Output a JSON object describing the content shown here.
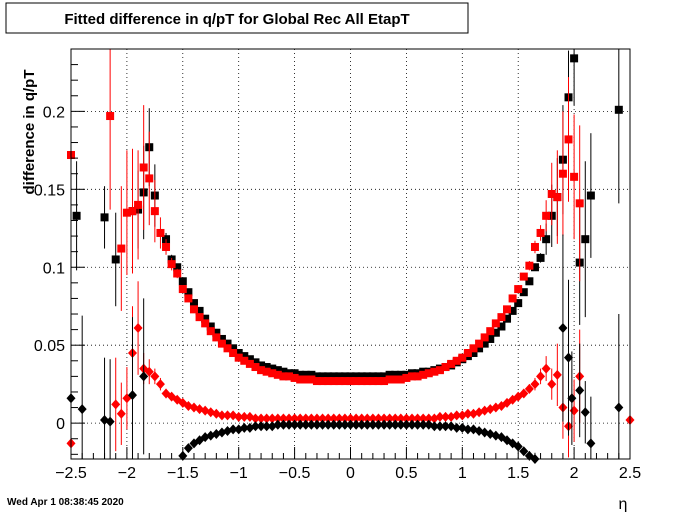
{
  "chart_data": {
    "type": "scatter",
    "title": "Fitted difference in q/pT for Global Rec All EtapT",
    "xlabel": "η",
    "ylabel": "difference in q/pT",
    "xlim": [
      -2.5,
      2.5
    ],
    "ylim": [
      -0.023,
      0.24
    ],
    "x_ticks": [
      -2.5,
      -2,
      -1.5,
      -1,
      -0.5,
      0,
      0.5,
      1,
      1.5,
      2,
      2.5
    ],
    "x_tick_labels": [
      "−2.5",
      "−2",
      "−1.5",
      "−1",
      "−0.5",
      "0",
      "0.5",
      "1",
      "1.5",
      "2",
      "2.5"
    ],
    "y_ticks": [
      0,
      0.05,
      0.1,
      0.15,
      0.2
    ],
    "y_tick_labels": [
      "0",
      "0.05",
      "0.1",
      "0.15",
      "0.2"
    ],
    "grid": true,
    "colors": {
      "black": "#000000",
      "red": "#ff0000"
    },
    "series": [
      {
        "marker": "square",
        "color": "#000000",
        "x": [
          -2.45,
          -2.2,
          -2.1,
          -1.95,
          -1.9,
          -1.85,
          -1.8,
          -1.75,
          -1.65,
          -1.6,
          -1.55,
          -1.5,
          -1.45,
          -1.4,
          -1.35,
          -1.3,
          -1.25,
          -1.2,
          -1.15,
          -1.1,
          -1.05,
          -1.0,
          -0.95,
          -0.9,
          -0.85,
          -0.8,
          -0.75,
          -0.7,
          -0.65,
          -0.6,
          -0.55,
          -0.5,
          -0.45,
          -0.4,
          -0.35,
          -0.3,
          -0.25,
          -0.2,
          -0.15,
          -0.1,
          -0.05,
          0.0,
          0.05,
          0.1,
          0.15,
          0.2,
          0.25,
          0.3,
          0.35,
          0.4,
          0.45,
          0.5,
          0.55,
          0.6,
          0.65,
          0.7,
          0.75,
          0.8,
          0.85,
          0.9,
          0.95,
          1.0,
          1.05,
          1.1,
          1.15,
          1.2,
          1.25,
          1.3,
          1.35,
          1.4,
          1.45,
          1.5,
          1.55,
          1.6,
          1.65,
          1.7,
          1.75,
          1.8,
          1.85,
          1.9,
          1.95,
          2.0,
          2.05,
          2.1,
          2.15,
          2.4
        ],
        "y": [
          0.133,
          0.132,
          0.105,
          0.136,
          0.137,
          0.148,
          0.177,
          0.146,
          0.118,
          0.105,
          0.1,
          0.091,
          0.084,
          0.077,
          0.072,
          0.067,
          0.062,
          0.058,
          0.054,
          0.051,
          0.048,
          0.045,
          0.043,
          0.041,
          0.039,
          0.037,
          0.036,
          0.035,
          0.034,
          0.033,
          0.032,
          0.032,
          0.031,
          0.031,
          0.031,
          0.03,
          0.03,
          0.03,
          0.03,
          0.03,
          0.03,
          0.03,
          0.03,
          0.03,
          0.03,
          0.03,
          0.03,
          0.03,
          0.031,
          0.031,
          0.031,
          0.031,
          0.032,
          0.032,
          0.033,
          0.033,
          0.034,
          0.035,
          0.036,
          0.037,
          0.039,
          0.041,
          0.043,
          0.045,
          0.048,
          0.051,
          0.054,
          0.058,
          0.062,
          0.067,
          0.072,
          0.077,
          0.084,
          0.091,
          0.1,
          0.106,
          0.118,
          0.133,
          0.145,
          0.169,
          0.209,
          0.234,
          0.103,
          0.118,
          0.146,
          0.201
        ],
        "err": [
          0.035,
          0.02,
          0.03,
          0.035,
          0.025,
          0.03,
          0.025,
          0.02,
          0.004,
          0.003,
          0.002,
          0.002,
          0.001,
          0.001,
          0.001,
          0.001,
          0.001,
          0.001,
          0.001,
          0.001,
          0.001,
          0.001,
          0.001,
          0.001,
          0.001,
          0.001,
          0.001,
          0.001,
          0.001,
          0.001,
          0.001,
          0.001,
          0.001,
          0.001,
          0.001,
          0.001,
          0.001,
          0.001,
          0.001,
          0.001,
          0.001,
          0.001,
          0.001,
          0.001,
          0.001,
          0.001,
          0.001,
          0.001,
          0.001,
          0.001,
          0.001,
          0.001,
          0.001,
          0.001,
          0.001,
          0.001,
          0.001,
          0.001,
          0.001,
          0.001,
          0.001,
          0.001,
          0.001,
          0.001,
          0.001,
          0.001,
          0.001,
          0.001,
          0.001,
          0.001,
          0.001,
          0.001,
          0.002,
          0.002,
          0.002,
          0.003,
          0.01,
          0.02,
          0.025,
          0.035,
          0.03,
          0.03,
          0.04,
          0.05,
          0.04,
          0.06
        ]
      },
      {
        "marker": "square",
        "color": "#ff0000",
        "x": [
          -2.5,
          -2.15,
          -2.05,
          -2.0,
          -1.95,
          -1.9,
          -1.85,
          -1.8,
          -1.75,
          -1.7,
          -1.65,
          -1.6,
          -1.55,
          -1.5,
          -1.45,
          -1.4,
          -1.35,
          -1.3,
          -1.25,
          -1.2,
          -1.15,
          -1.1,
          -1.05,
          -1.0,
          -0.95,
          -0.9,
          -0.85,
          -0.8,
          -0.75,
          -0.7,
          -0.65,
          -0.6,
          -0.55,
          -0.5,
          -0.45,
          -0.4,
          -0.35,
          -0.3,
          -0.25,
          -0.2,
          -0.15,
          -0.1,
          -0.05,
          0.0,
          0.05,
          0.1,
          0.15,
          0.2,
          0.25,
          0.3,
          0.35,
          0.4,
          0.45,
          0.5,
          0.55,
          0.6,
          0.65,
          0.7,
          0.75,
          0.8,
          0.85,
          0.9,
          0.95,
          1.0,
          1.05,
          1.1,
          1.15,
          1.2,
          1.25,
          1.3,
          1.35,
          1.4,
          1.45,
          1.5,
          1.55,
          1.6,
          1.65,
          1.7,
          1.75,
          1.8,
          1.85,
          1.9,
          1.95,
          2.0,
          2.05
        ],
        "y": [
          0.172,
          0.197,
          0.112,
          0.135,
          0.136,
          0.14,
          0.164,
          0.157,
          0.136,
          0.122,
          0.113,
          0.102,
          0.096,
          0.086,
          0.08,
          0.073,
          0.068,
          0.064,
          0.059,
          0.055,
          0.051,
          0.048,
          0.045,
          0.042,
          0.04,
          0.038,
          0.036,
          0.034,
          0.033,
          0.032,
          0.031,
          0.03,
          0.03,
          0.029,
          0.028,
          0.028,
          0.028,
          0.027,
          0.027,
          0.027,
          0.027,
          0.027,
          0.027,
          0.027,
          0.027,
          0.027,
          0.027,
          0.027,
          0.027,
          0.027,
          0.028,
          0.028,
          0.028,
          0.029,
          0.03,
          0.03,
          0.031,
          0.032,
          0.033,
          0.034,
          0.036,
          0.038,
          0.04,
          0.042,
          0.045,
          0.048,
          0.051,
          0.055,
          0.059,
          0.064,
          0.068,
          0.073,
          0.08,
          0.086,
          0.094,
          0.101,
          0.113,
          0.122,
          0.133,
          0.147,
          0.145,
          0.16,
          0.182,
          0.158,
          0.141
        ],
        "err": [
          0.05,
          0.06,
          0.04,
          0.04,
          0.04,
          0.035,
          0.04,
          0.03,
          0.02,
          0.01,
          0.005,
          0.004,
          0.003,
          0.002,
          0.002,
          0.001,
          0.001,
          0.001,
          0.001,
          0.001,
          0.001,
          0.001,
          0.001,
          0.001,
          0.001,
          0.001,
          0.001,
          0.001,
          0.001,
          0.001,
          0.001,
          0.001,
          0.001,
          0.001,
          0.001,
          0.001,
          0.001,
          0.001,
          0.001,
          0.001,
          0.001,
          0.001,
          0.001,
          0.001,
          0.001,
          0.001,
          0.001,
          0.001,
          0.001,
          0.001,
          0.001,
          0.001,
          0.001,
          0.001,
          0.001,
          0.001,
          0.001,
          0.001,
          0.001,
          0.001,
          0.001,
          0.001,
          0.001,
          0.001,
          0.001,
          0.001,
          0.001,
          0.001,
          0.001,
          0.001,
          0.001,
          0.001,
          0.001,
          0.002,
          0.002,
          0.003,
          0.004,
          0.005,
          0.01,
          0.02,
          0.03,
          0.04,
          0.04,
          0.04,
          0.05
        ]
      },
      {
        "marker": "diamond",
        "color": "#ff0000",
        "x": [
          -2.5,
          -2.1,
          -2.05,
          -2.0,
          -1.95,
          -1.9,
          -1.85,
          -1.8,
          -1.75,
          -1.7,
          -1.65,
          -1.6,
          -1.55,
          -1.5,
          -1.45,
          -1.4,
          -1.35,
          -1.3,
          -1.25,
          -1.2,
          -1.15,
          -1.1,
          -1.05,
          -1.0,
          -0.95,
          -0.9,
          -0.85,
          -0.8,
          -0.75,
          -0.7,
          -0.65,
          -0.6,
          -0.55,
          -0.5,
          -0.45,
          -0.4,
          -0.35,
          -0.3,
          -0.25,
          -0.2,
          -0.15,
          -0.1,
          -0.05,
          0.0,
          0.05,
          0.1,
          0.15,
          0.2,
          0.25,
          0.3,
          0.35,
          0.4,
          0.45,
          0.5,
          0.55,
          0.6,
          0.65,
          0.7,
          0.75,
          0.8,
          0.85,
          0.9,
          0.95,
          1.0,
          1.05,
          1.1,
          1.15,
          1.2,
          1.25,
          1.3,
          1.35,
          1.4,
          1.45,
          1.5,
          1.55,
          1.6,
          1.65,
          1.7,
          1.75,
          1.8,
          1.85,
          1.9,
          1.95,
          2.0,
          2.05,
          2.5
        ],
        "y": [
          -0.013,
          0.012,
          0.006,
          0.016,
          0.045,
          0.061,
          0.035,
          0.033,
          0.03,
          0.025,
          0.019,
          0.017,
          0.015,
          0.013,
          0.011,
          0.01,
          0.009,
          0.008,
          0.007,
          0.006,
          0.005,
          0.005,
          0.005,
          0.004,
          0.004,
          0.004,
          0.003,
          0.003,
          0.003,
          0.003,
          0.003,
          0.003,
          0.003,
          0.003,
          0.003,
          0.003,
          0.003,
          0.003,
          0.003,
          0.003,
          0.003,
          0.003,
          0.003,
          0.003,
          0.003,
          0.003,
          0.003,
          0.003,
          0.003,
          0.003,
          0.003,
          0.003,
          0.003,
          0.003,
          0.003,
          0.003,
          0.003,
          0.003,
          0.003,
          0.004,
          0.004,
          0.004,
          0.005,
          0.005,
          0.006,
          0.006,
          0.007,
          0.008,
          0.009,
          0.01,
          0.011,
          0.013,
          0.015,
          0.017,
          0.019,
          0.022,
          0.025,
          0.03,
          0.035,
          0.025,
          0.031,
          0.01,
          -0.002,
          0.008,
          0.03,
          0.002
        ],
        "err": [
          0.02,
          0.03,
          0.02,
          0.02,
          0.03,
          0.03,
          0.01,
          0.008,
          0.005,
          0.004,
          0.003,
          0.002,
          0.002,
          0.002,
          0.001,
          0.001,
          0.001,
          0.001,
          0.001,
          0.001,
          0.001,
          0.001,
          0.001,
          0.001,
          0.001,
          0.001,
          0.001,
          0.001,
          0.001,
          0.001,
          0.001,
          0.001,
          0.001,
          0.001,
          0.001,
          0.001,
          0.001,
          0.001,
          0.001,
          0.001,
          0.001,
          0.001,
          0.001,
          0.001,
          0.001,
          0.001,
          0.001,
          0.001,
          0.001,
          0.001,
          0.001,
          0.001,
          0.001,
          0.001,
          0.001,
          0.001,
          0.001,
          0.001,
          0.001,
          0.001,
          0.001,
          0.001,
          0.001,
          0.001,
          0.001,
          0.001,
          0.001,
          0.001,
          0.001,
          0.001,
          0.001,
          0.001,
          0.002,
          0.002,
          0.002,
          0.003,
          0.004,
          0.005,
          0.008,
          0.01,
          0.02,
          0.02,
          0.02,
          0.02,
          0.03,
          0.02
        ]
      },
      {
        "marker": "diamond",
        "color": "#000000",
        "x": [
          -2.5,
          -2.4,
          -2.2,
          -2.15,
          -1.95,
          -1.85,
          -1.5,
          -1.45,
          -1.4,
          -1.35,
          -1.3,
          -1.25,
          -1.2,
          -1.15,
          -1.1,
          -1.05,
          -1.0,
          -0.95,
          -0.9,
          -0.85,
          -0.8,
          -0.75,
          -0.7,
          -0.65,
          -0.6,
          -0.55,
          -0.5,
          -0.45,
          -0.4,
          -0.35,
          -0.3,
          -0.25,
          -0.2,
          -0.15,
          -0.1,
          -0.05,
          0.0,
          0.05,
          0.1,
          0.15,
          0.2,
          0.25,
          0.3,
          0.35,
          0.4,
          0.45,
          0.5,
          0.55,
          0.6,
          0.65,
          0.7,
          0.75,
          0.8,
          0.85,
          0.9,
          0.95,
          1.0,
          1.05,
          1.1,
          1.15,
          1.2,
          1.25,
          1.3,
          1.35,
          1.4,
          1.45,
          1.5,
          1.55,
          1.6,
          1.65,
          1.9,
          1.95,
          1.98,
          2.05,
          2.1,
          2.15,
          2.4
        ],
        "y": [
          0.016,
          0.009,
          0.002,
          0.001,
          0.018,
          0.03,
          -0.021,
          -0.016,
          -0.013,
          -0.011,
          -0.009,
          -0.008,
          -0.007,
          -0.006,
          -0.005,
          -0.004,
          -0.004,
          -0.003,
          -0.003,
          -0.002,
          -0.002,
          -0.002,
          -0.002,
          -0.001,
          -0.001,
          -0.001,
          -0.001,
          -0.001,
          -0.001,
          -0.001,
          -0.001,
          -0.001,
          -0.001,
          -0.001,
          -0.001,
          -0.001,
          -0.001,
          -0.001,
          -0.001,
          -0.001,
          -0.001,
          -0.001,
          -0.001,
          -0.001,
          -0.001,
          -0.001,
          -0.001,
          -0.001,
          -0.001,
          -0.001,
          -0.001,
          -0.002,
          -0.002,
          -0.002,
          -0.002,
          -0.003,
          -0.003,
          -0.004,
          -0.004,
          -0.005,
          -0.006,
          -0.007,
          -0.008,
          -0.009,
          -0.011,
          -0.013,
          -0.015,
          -0.018,
          -0.021,
          -0.023,
          0.061,
          0.042,
          0.016,
          0.021,
          0.007,
          -0.013,
          0.01
        ],
        "err": [
          0.05,
          0.06,
          0.04,
          0.04,
          0.05,
          0.05,
          0.003,
          0.002,
          0.001,
          0.001,
          0.001,
          0.001,
          0.001,
          0.001,
          0.001,
          0.001,
          0.001,
          0.001,
          0.001,
          0.001,
          0.001,
          0.001,
          0.001,
          0.001,
          0.001,
          0.001,
          0.001,
          0.001,
          0.001,
          0.001,
          0.001,
          0.001,
          0.001,
          0.001,
          0.001,
          0.001,
          0.001,
          0.001,
          0.001,
          0.001,
          0.001,
          0.001,
          0.001,
          0.001,
          0.001,
          0.001,
          0.001,
          0.001,
          0.001,
          0.001,
          0.001,
          0.001,
          0.001,
          0.001,
          0.001,
          0.001,
          0.001,
          0.001,
          0.001,
          0.001,
          0.001,
          0.001,
          0.001,
          0.001,
          0.001,
          0.001,
          0.002,
          0.002,
          0.003,
          0.004,
          0.06,
          0.05,
          0.03,
          0.03,
          0.02,
          0.03,
          0.06
        ]
      }
    ]
  },
  "footer": {
    "timestamp": "Wed Apr  1 08:38:45 2020"
  }
}
